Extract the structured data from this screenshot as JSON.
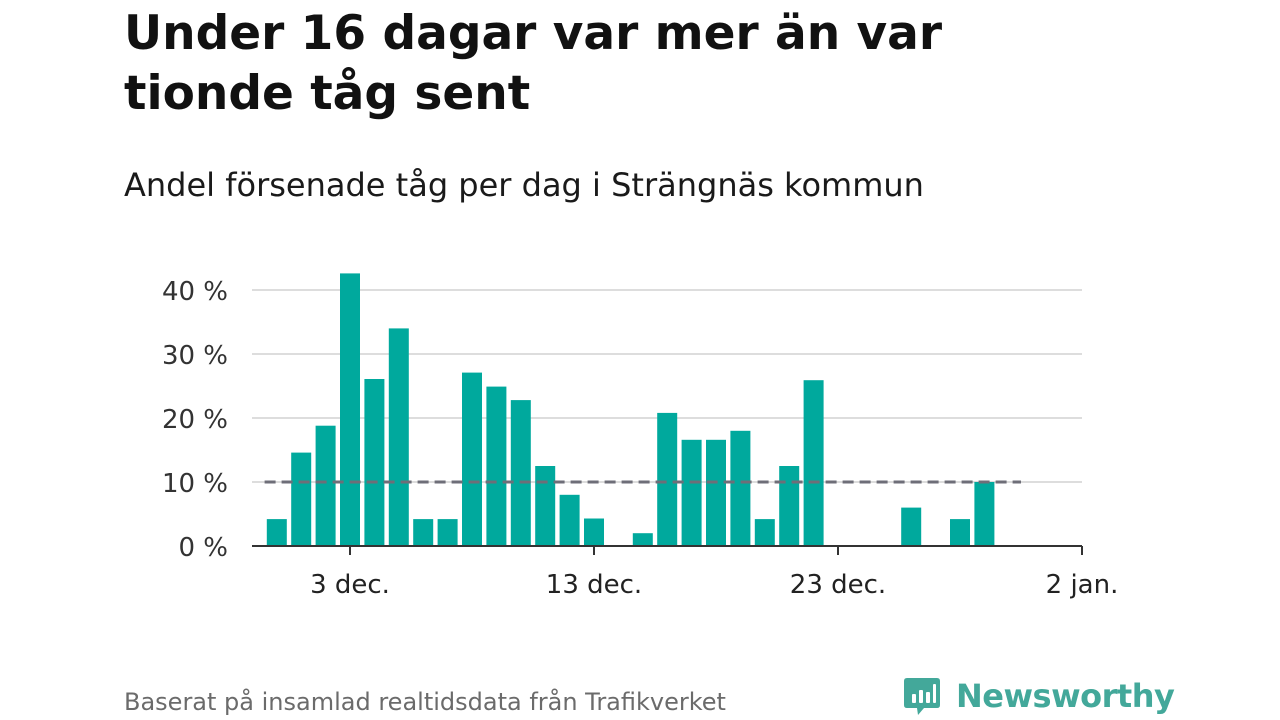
{
  "title": "Under 16 dagar var mer än var tionde tåg sent",
  "subtitle": "Andel försenade tåg per dag i Strängnäs kommun",
  "source": "Baserat på insamlad realtidsdata från Trafikverket",
  "brand": {
    "name": "Newsworthy",
    "color": "#43a89a"
  },
  "colors": {
    "bar": "#00a99d",
    "grid": "#dddddd",
    "axis": "#333333",
    "reference_line": "#6e6e78"
  },
  "chart_data": {
    "type": "bar",
    "x_unit": "day",
    "categories": [
      "2018-11-30",
      "2018-12-01",
      "2018-12-02",
      "2018-12-03",
      "2018-12-04",
      "2018-12-05",
      "2018-12-06",
      "2018-12-07",
      "2018-12-08",
      "2018-12-09",
      "2018-12-10",
      "2018-12-11",
      "2018-12-12",
      "2018-12-13",
      "2018-12-14",
      "2018-12-15",
      "2018-12-16",
      "2018-12-17",
      "2018-12-18",
      "2018-12-19",
      "2018-12-20",
      "2018-12-21",
      "2018-12-22",
      "2018-12-23",
      "2018-12-24",
      "2018-12-25",
      "2018-12-26",
      "2018-12-27",
      "2018-12-28",
      "2018-12-29",
      "2018-12-30"
    ],
    "values": [
      4.2,
      14.6,
      18.8,
      42.6,
      26.1,
      34.0,
      4.2,
      4.2,
      27.1,
      24.9,
      22.8,
      12.5,
      8.0,
      4.3,
      0,
      2.0,
      20.8,
      16.6,
      16.6,
      18.0,
      4.2,
      12.5,
      25.9,
      0,
      0,
      0,
      6.0,
      0,
      4.2,
      10.0,
      0
    ],
    "reference_line": {
      "value": 10,
      "from": "2018-11-30",
      "to": "2018-12-31",
      "style": "dashed"
    },
    "x_ticks": [
      {
        "date": "2018-12-03",
        "label": "3 dec."
      },
      {
        "date": "2018-12-13",
        "label": "13 dec."
      },
      {
        "date": "2018-12-23",
        "label": "23 dec."
      },
      {
        "date": "2019-01-02",
        "label": "2 jan."
      }
    ],
    "y_ticks": [
      {
        "value": 0,
        "label": "0 %"
      },
      {
        "value": 10,
        "label": "10 %"
      },
      {
        "value": 20,
        "label": "20 %"
      },
      {
        "value": 30,
        "label": "30 %"
      },
      {
        "value": 40,
        "label": "40 %"
      }
    ],
    "ylim": [
      0,
      40
    ],
    "grid": "horizontal",
    "legend": "none"
  }
}
